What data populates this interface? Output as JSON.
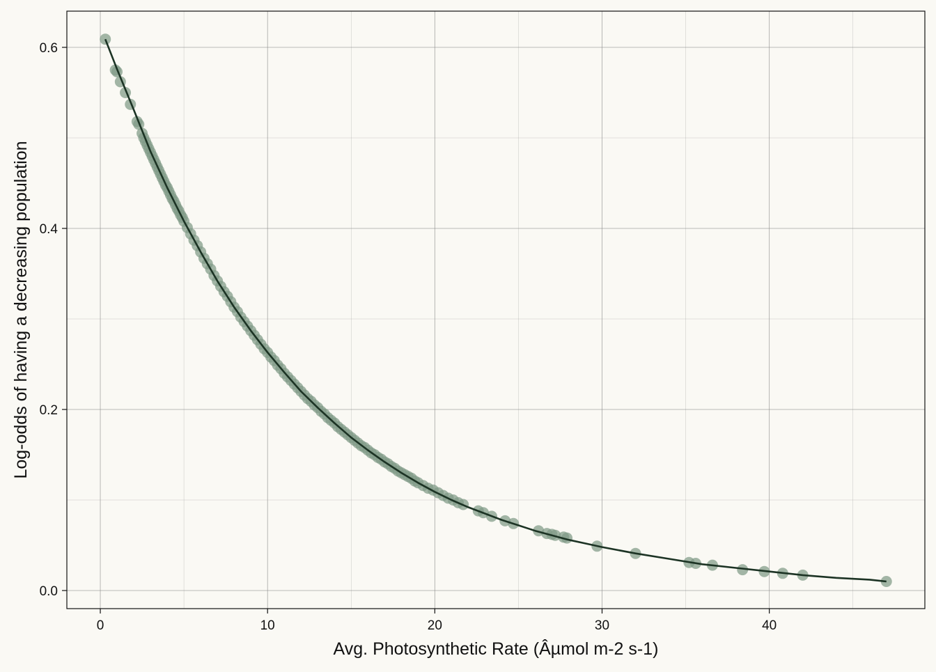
{
  "chart_data": {
    "type": "scatter",
    "title": "",
    "xlabel": "Avg. Photosynthetic Rate (Âµmol m-2 s-1)",
    "ylabel": "Log-odds of having a decreasing population",
    "xlim": [
      -2,
      49.3
    ],
    "ylim": [
      -0.02,
      0.64
    ],
    "x_ticks": [
      0,
      10,
      20,
      30,
      40
    ],
    "y_ticks": [
      0.0,
      0.2,
      0.4,
      0.6
    ],
    "x_tick_labels": [
      "0",
      "10",
      "20",
      "30",
      "40"
    ],
    "y_tick_labels": [
      "0.0",
      "0.2",
      "0.4",
      "0.6"
    ],
    "grid": true,
    "colors": {
      "background": "#faf9f4",
      "points": "#7f9a86",
      "line": "#1c3324",
      "grid": "#8a8a8a"
    },
    "points": {
      "x": [
        0.3,
        0.9,
        1.0,
        1.2,
        1.5,
        1.8,
        2.2,
        2.3,
        2.5,
        2.6,
        2.7,
        2.8,
        2.9,
        3.0,
        3.1,
        3.2,
        3.3,
        3.4,
        3.5,
        3.6,
        3.7,
        3.8,
        3.9,
        4.0,
        4.1,
        4.2,
        4.3,
        4.4,
        4.5,
        4.6,
        4.7,
        4.8,
        4.9,
        5.0,
        5.2,
        5.4,
        5.6,
        5.8,
        6.0,
        6.2,
        6.4,
        6.6,
        6.8,
        7.0,
        7.2,
        7.4,
        7.6,
        7.8,
        8.0,
        8.2,
        8.4,
        8.6,
        8.8,
        9.0,
        9.2,
        9.4,
        9.6,
        9.8,
        10.0,
        10.2,
        10.4,
        10.6,
        10.8,
        11.0,
        11.2,
        11.4,
        11.6,
        11.8,
        12.0,
        12.2,
        12.4,
        12.6,
        12.8,
        13.0,
        13.2,
        13.4,
        13.6,
        13.8,
        14.0,
        14.2,
        14.4,
        14.6,
        14.8,
        15.0,
        15.2,
        15.4,
        15.6,
        15.8,
        16.0,
        16.2,
        16.4,
        16.6,
        16.8,
        17.0,
        17.2,
        17.4,
        17.6,
        17.8,
        18.0,
        18.2,
        18.4,
        18.6,
        18.8,
        19.0,
        19.3,
        19.6,
        19.9,
        20.2,
        20.5,
        20.8,
        21.1,
        21.4,
        21.7,
        22.6,
        22.9,
        23.4,
        24.2,
        24.7,
        26.2,
        26.7,
        27.0,
        27.2,
        27.7,
        27.9,
        29.7,
        32.0,
        35.2,
        35.6,
        36.6,
        38.4,
        39.7,
        40.8,
        42.0,
        47.0
      ],
      "y": [
        0.609,
        0.575,
        0.573,
        0.562,
        0.55,
        0.537,
        0.518,
        0.515,
        0.505,
        0.5,
        0.496,
        0.492,
        0.488,
        0.484,
        0.48,
        0.476,
        0.472,
        0.468,
        0.464,
        0.46,
        0.456,
        0.452,
        0.448,
        0.445,
        0.441,
        0.437,
        0.433,
        0.43,
        0.426,
        0.422,
        0.419,
        0.415,
        0.412,
        0.408,
        0.401,
        0.394,
        0.387,
        0.381,
        0.374,
        0.367,
        0.361,
        0.355,
        0.348,
        0.342,
        0.336,
        0.33,
        0.325,
        0.319,
        0.313,
        0.308,
        0.302,
        0.297,
        0.292,
        0.287,
        0.282,
        0.277,
        0.272,
        0.267,
        0.263,
        0.258,
        0.254,
        0.249,
        0.245,
        0.24,
        0.236,
        0.232,
        0.228,
        0.224,
        0.22,
        0.216,
        0.212,
        0.209,
        0.205,
        0.202,
        0.198,
        0.195,
        0.191,
        0.188,
        0.185,
        0.181,
        0.178,
        0.175,
        0.172,
        0.169,
        0.166,
        0.163,
        0.16,
        0.158,
        0.155,
        0.152,
        0.15,
        0.147,
        0.145,
        0.142,
        0.14,
        0.137,
        0.135,
        0.132,
        0.13,
        0.128,
        0.126,
        0.124,
        0.121,
        0.119,
        0.116,
        0.113,
        0.111,
        0.108,
        0.105,
        0.102,
        0.1,
        0.097,
        0.095,
        0.088,
        0.086,
        0.082,
        0.077,
        0.074,
        0.066,
        0.063,
        0.062,
        0.061,
        0.059,
        0.058,
        0.049,
        0.041,
        0.031,
        0.03,
        0.028,
        0.023,
        0.021,
        0.019,
        0.017,
        0.01
      ]
    },
    "fit_line": {
      "x": [
        0.3,
        1,
        2,
        3,
        4,
        5,
        6,
        7,
        8,
        9,
        10,
        11,
        12,
        13,
        14,
        15,
        16,
        17,
        18,
        19,
        20,
        21,
        22,
        23,
        24,
        25,
        26,
        27,
        28,
        29,
        30,
        32,
        34,
        36,
        38,
        40,
        42,
        44,
        46,
        47
      ],
      "y": [
        0.609,
        0.576,
        0.531,
        0.485,
        0.445,
        0.408,
        0.374,
        0.342,
        0.313,
        0.287,
        0.263,
        0.241,
        0.22,
        0.202,
        0.185,
        0.169,
        0.155,
        0.142,
        0.13,
        0.119,
        0.109,
        0.1,
        0.092,
        0.085,
        0.078,
        0.072,
        0.066,
        0.061,
        0.056,
        0.052,
        0.048,
        0.041,
        0.035,
        0.029,
        0.025,
        0.021,
        0.017,
        0.014,
        0.012,
        0.01
      ]
    }
  }
}
